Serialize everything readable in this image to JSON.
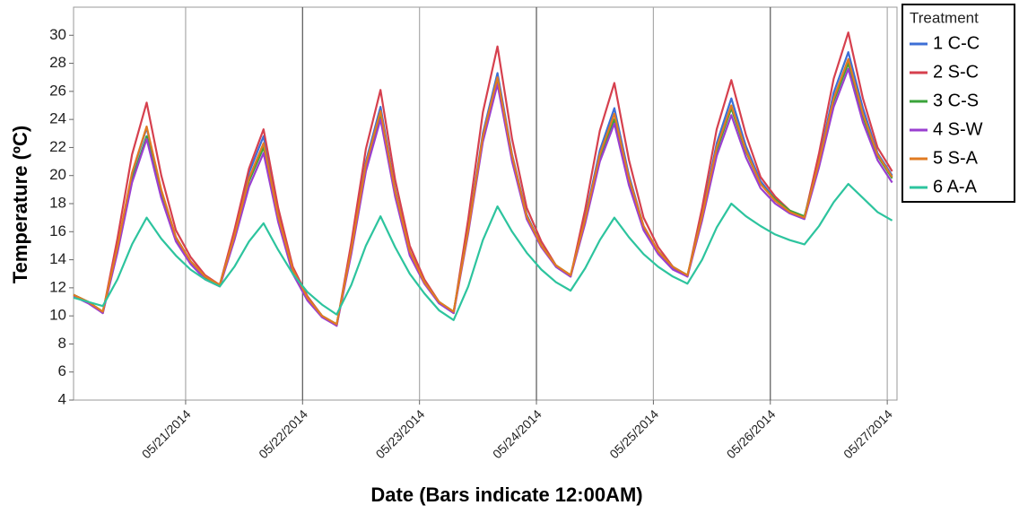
{
  "chart_data": {
    "type": "line",
    "xlabel": "Date (Bars indicate 12:00AM)",
    "ylabel": "Temperature (ºC)",
    "legend_title": "Treatment",
    "legend_position": "right",
    "xgrid": true,
    "xlim": [
      1,
      170
    ],
    "ylim": [
      4,
      32
    ],
    "yticks": [
      4,
      6,
      8,
      10,
      12,
      14,
      16,
      18,
      20,
      22,
      24,
      26,
      28,
      30
    ],
    "xticks": [
      {
        "value": 24,
        "label": "05/21/2014"
      },
      {
        "value": 48,
        "label": "05/22/2014"
      },
      {
        "value": 72,
        "label": "05/23/2014"
      },
      {
        "value": 96,
        "label": "05/24/2014"
      },
      {
        "value": 120,
        "label": "05/25/2014"
      },
      {
        "value": 144,
        "label": "05/26/2014"
      },
      {
        "value": 168,
        "label": "05/27/2014"
      }
    ],
    "x": [
      1,
      4,
      7,
      10,
      13,
      16,
      19,
      22,
      25,
      28,
      31,
      34,
      37,
      40,
      43,
      46,
      49,
      52,
      55,
      58,
      61,
      64,
      67,
      70,
      73,
      76,
      79,
      82,
      85,
      88,
      91,
      94,
      97,
      100,
      103,
      106,
      109,
      112,
      115,
      118,
      121,
      124,
      127,
      130,
      133,
      136,
      139,
      142,
      145,
      148,
      151,
      154,
      157,
      160,
      163,
      166,
      169
    ],
    "series": [
      {
        "name": "1 C-C",
        "color": "#3d6fd6",
        "values": [
          11.5,
          11.0,
          10.2,
          14.8,
          20.1,
          23.4,
          18.9,
          15.6,
          13.9,
          12.8,
          12.2,
          15.9,
          20.2,
          22.8,
          17.4,
          13.4,
          11.3,
          10.0,
          9.3,
          14.8,
          21.0,
          24.9,
          19.0,
          14.6,
          12.4,
          10.9,
          10.2,
          16.2,
          23.0,
          27.3,
          21.5,
          17.2,
          15.0,
          13.5,
          12.8,
          17.0,
          21.8,
          24.8,
          20.0,
          16.4,
          14.6,
          13.4,
          12.8,
          17.2,
          22.3,
          25.5,
          22.1,
          19.6,
          18.3,
          17.4,
          17.0,
          21.1,
          25.9,
          28.8,
          24.8,
          21.6,
          20.0
        ]
      },
      {
        "name": "2 S-C",
        "color": "#d6404e",
        "values": [
          11.5,
          11.0,
          10.2,
          15.5,
          21.5,
          25.2,
          20.0,
          16.1,
          14.2,
          12.9,
          12.2,
          16.1,
          20.5,
          23.3,
          17.7,
          13.5,
          11.4,
          10.0,
          9.3,
          15.2,
          21.9,
          26.1,
          19.7,
          15.0,
          12.6,
          11.0,
          10.2,
          16.9,
          24.5,
          29.2,
          22.6,
          17.7,
          15.3,
          13.6,
          12.8,
          17.6,
          23.2,
          26.6,
          21.1,
          17.0,
          14.9,
          13.5,
          12.8,
          17.7,
          23.3,
          26.8,
          22.9,
          19.9,
          18.5,
          17.5,
          17.0,
          21.6,
          26.9,
          30.2,
          25.5,
          22.0,
          20.3
        ]
      },
      {
        "name": "3 C-S",
        "color": "#3aa33a",
        "values": [
          11.5,
          11.0,
          10.3,
          14.7,
          19.7,
          22.8,
          18.6,
          15.4,
          13.8,
          12.7,
          12.2,
          15.6,
          19.6,
          22.0,
          17.0,
          13.2,
          11.3,
          10.0,
          9.4,
          14.6,
          20.6,
          24.3,
          18.7,
          14.5,
          12.4,
          11.0,
          10.3,
          16.1,
          22.7,
          26.8,
          21.2,
          17.1,
          15.0,
          13.6,
          12.9,
          16.8,
          21.2,
          24.0,
          19.6,
          16.2,
          14.6,
          13.5,
          12.9,
          17.1,
          21.8,
          24.8,
          21.7,
          19.4,
          18.3,
          17.5,
          17.1,
          20.9,
          25.3,
          28.0,
          24.2,
          21.4,
          19.8
        ]
      },
      {
        "name": "4 S-W",
        "color": "#9a3fd0",
        "values": [
          11.4,
          10.9,
          10.2,
          14.5,
          19.5,
          22.6,
          18.4,
          15.3,
          13.7,
          12.6,
          12.1,
          15.4,
          19.2,
          21.6,
          16.7,
          13.0,
          11.1,
          9.9,
          9.3,
          14.4,
          20.3,
          24.0,
          18.5,
          14.3,
          12.3,
          10.9,
          10.2,
          15.9,
          22.4,
          26.5,
          21.0,
          16.9,
          14.9,
          13.5,
          12.8,
          16.6,
          21.0,
          23.7,
          19.3,
          16.1,
          14.4,
          13.3,
          12.8,
          16.8,
          21.4,
          24.3,
          21.3,
          19.1,
          18.0,
          17.3,
          16.9,
          20.6,
          24.9,
          27.6,
          23.8,
          21.1,
          19.5
        ]
      },
      {
        "name": "5 S-A",
        "color": "#e07b22",
        "values": [
          11.5,
          11.0,
          10.3,
          14.9,
          20.2,
          23.5,
          19.0,
          15.6,
          13.9,
          12.8,
          12.2,
          15.7,
          19.8,
          22.3,
          17.1,
          13.3,
          11.3,
          10.0,
          9.4,
          14.7,
          20.8,
          24.6,
          18.9,
          14.6,
          12.4,
          11.0,
          10.3,
          16.1,
          22.8,
          27.0,
          21.4,
          17.1,
          15.0,
          13.6,
          12.9,
          16.9,
          21.5,
          24.4,
          19.8,
          16.4,
          14.6,
          13.5,
          12.9,
          17.1,
          22.0,
          25.0,
          21.8,
          19.4,
          18.2,
          17.4,
          17.0,
          21.0,
          25.5,
          28.3,
          24.4,
          21.5,
          19.9
        ]
      },
      {
        "name": "6 A-A",
        "color": "#2dc49e",
        "values": [
          11.3,
          11.0,
          10.7,
          12.6,
          15.1,
          17.0,
          15.5,
          14.3,
          13.3,
          12.6,
          12.1,
          13.5,
          15.3,
          16.6,
          14.7,
          13.0,
          11.7,
          10.8,
          10.1,
          12.2,
          15.0,
          17.1,
          14.9,
          13.0,
          11.6,
          10.4,
          9.7,
          12.1,
          15.4,
          17.8,
          16.0,
          14.5,
          13.3,
          12.4,
          11.8,
          13.4,
          15.4,
          17.0,
          15.6,
          14.4,
          13.5,
          12.8,
          12.3,
          14.0,
          16.3,
          18.0,
          17.1,
          16.4,
          15.8,
          15.4,
          15.1,
          16.4,
          18.1,
          19.4,
          18.4,
          17.4,
          16.8
        ]
      }
    ]
  }
}
